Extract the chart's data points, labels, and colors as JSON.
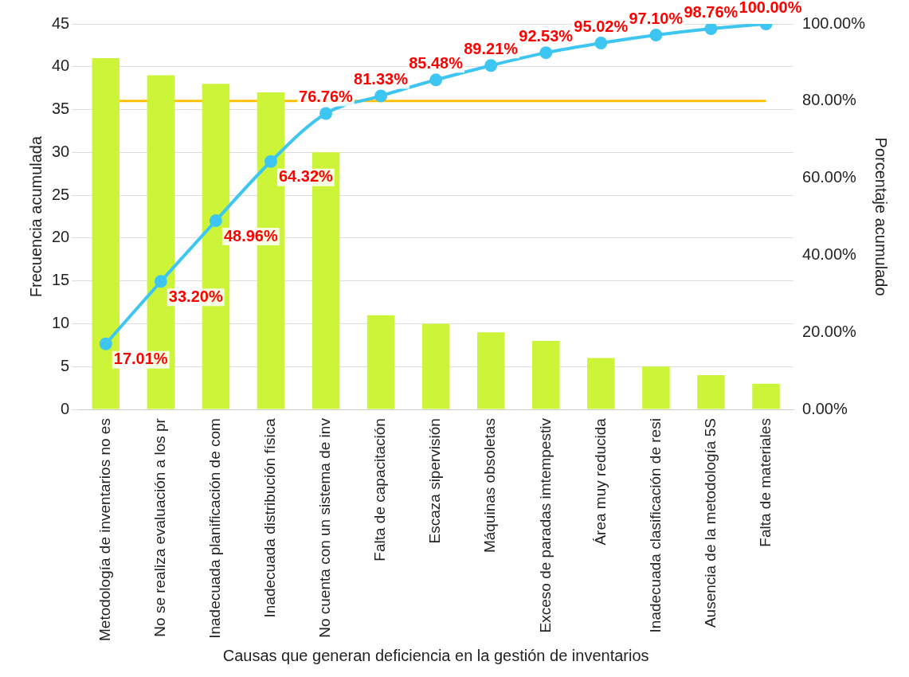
{
  "chart_data": {
    "type": "bar",
    "xlabel": "Causas que generan deficiencia en la gestión de inventarios",
    "ylabel": "Frecuencia acumulada",
    "y2label": "Porcentaje acumulado",
    "categories": [
      "Metodología de inventarios no es",
      "No se realiza evaluación a los pr",
      "Inadecuada planificación de com",
      "Inadecuada distribución física",
      "No cuenta con un sistema de inv",
      "Falta de capacitación",
      "Escaza sipervisión",
      "Máquinas obsoletas",
      "Exceso de paradas imtempestiv",
      "Área muy reducida",
      "Inadecuada clasificación de resi",
      "Ausencia de la metodología 5S",
      "Falta de materiales"
    ],
    "series": [
      {
        "color": "#ccf53a",
        "values": [
          41,
          39,
          38,
          37,
          30,
          11,
          10,
          9,
          8,
          6,
          5,
          4,
          3
        ]
      },
      {
        "type": "line",
        "axis": "y2",
        "color": "#3ec6f2",
        "marker": "circle",
        "values": [
          17.01,
          33.2,
          48.96,
          64.32,
          76.76,
          81.33,
          85.48,
          89.21,
          92.53,
          95.02,
          97.1,
          98.76,
          100
        ],
        "value_labels": [
          "17.01%",
          "33.20%",
          "48.96%",
          "64.32%",
          "76.76%",
          "81.33%",
          "85.48%",
          "89.21%",
          "92.53%",
          "95.02%",
          "97.10%",
          "98.76%",
          "100.00%"
        ]
      }
    ],
    "ylim": [
      0,
      45
    ],
    "yticks": [
      0,
      5,
      10,
      15,
      20,
      25,
      30,
      35,
      40,
      45
    ],
    "y2lim": [
      0,
      100
    ],
    "y2ticks": [
      {
        "value": 0,
        "label": "0.00%"
      },
      {
        "value": 20,
        "label": "20.00%"
      },
      {
        "value": 40,
        "label": "40.00%"
      },
      {
        "value": 60,
        "label": "60.00%"
      },
      {
        "value": 80,
        "label": "80.00%"
      },
      {
        "value": 100,
        "label": "100.00%"
      }
    ],
    "ref_lines": [
      {
        "axis": "y2",
        "value": 80,
        "color": "#ffc000"
      }
    ],
    "grid": "y",
    "legend": false
  }
}
